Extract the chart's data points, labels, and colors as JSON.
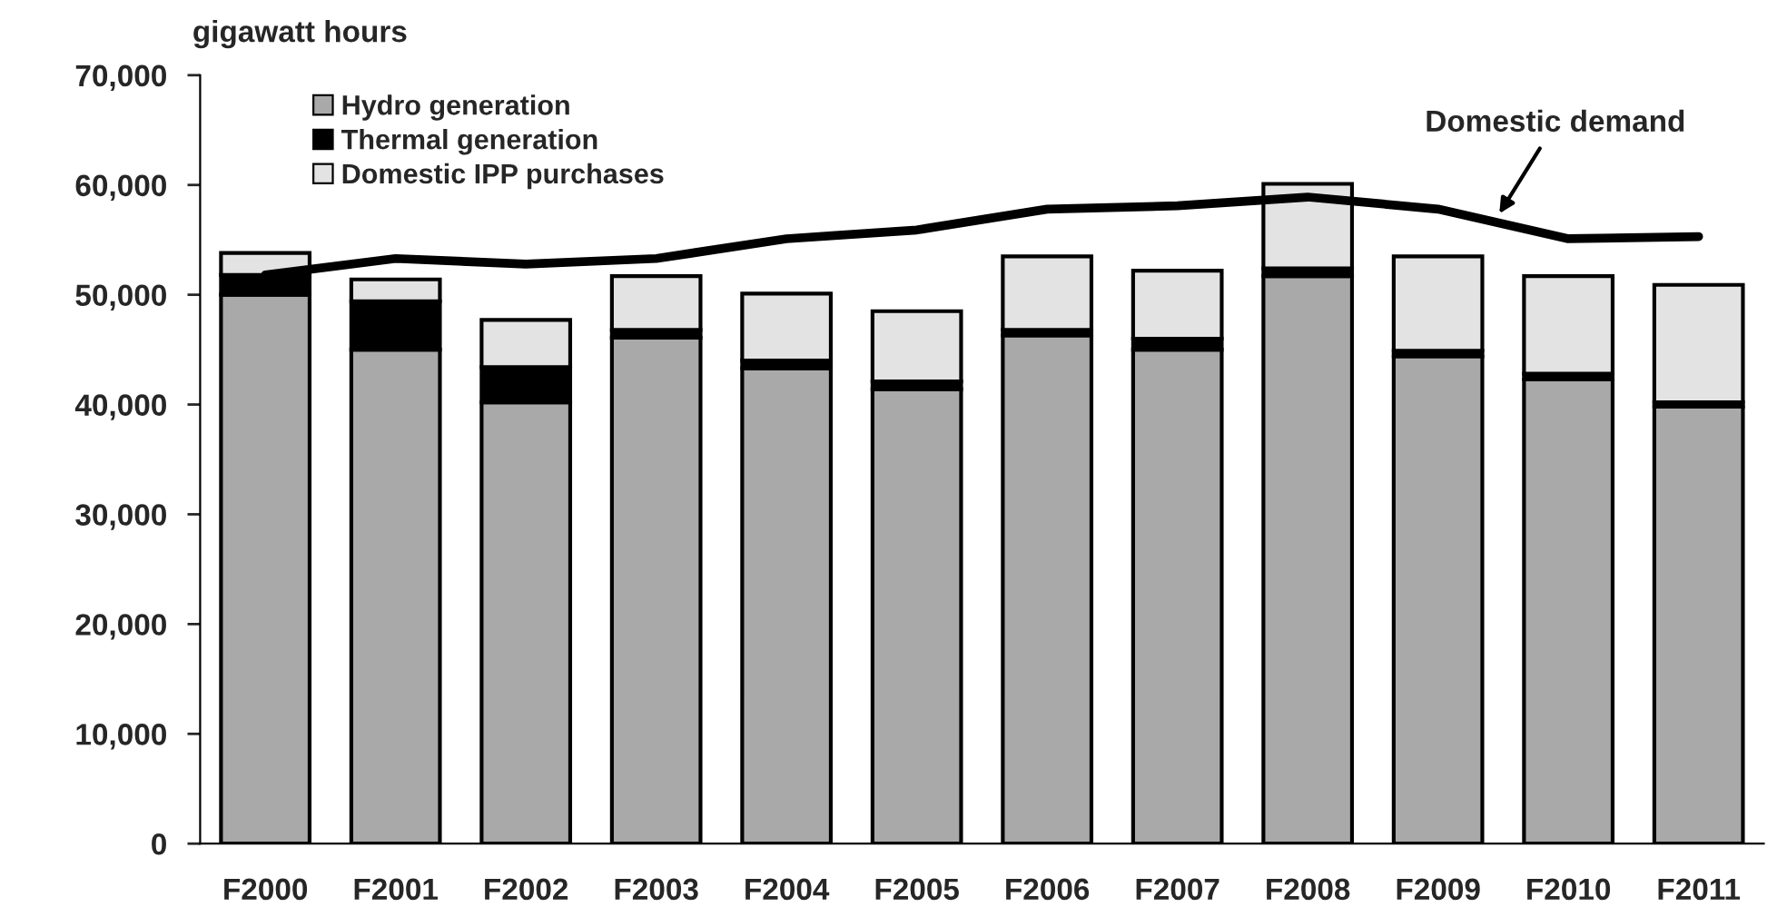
{
  "chart_data": {
    "type": "bar",
    "ylabel": "gigawatt hours",
    "stacked": true,
    "categories": [
      "F2000",
      "F2001",
      "F2002",
      "F2003",
      "F2004",
      "F2005",
      "F2006",
      "F2007",
      "F2008",
      "F2009",
      "F2010",
      "F2011"
    ],
    "series": [
      {
        "name": "Hydro generation",
        "color": "#a9a9a9",
        "values": [
          50000,
          45000,
          40200,
          46100,
          43300,
          41400,
          46300,
          45000,
          51700,
          44400,
          42300,
          39800
        ]
      },
      {
        "name": "Thermal generation",
        "color": "#000000",
        "values": [
          1800,
          4400,
          3200,
          700,
          700,
          700,
          500,
          1000,
          700,
          500,
          500,
          400
        ]
      },
      {
        "name": "Domestic IPP purchases",
        "color": "#e3e3e3",
        "values": [
          2000,
          2000,
          4300,
          4900,
          6100,
          6400,
          6700,
          6200,
          7700,
          8600,
          8900,
          10700
        ]
      },
      {
        "name": "Domestic demand",
        "type": "line",
        "color": "#000000",
        "values": [
          51800,
          53300,
          52800,
          53300,
          55100,
          55900,
          57800,
          58100,
          58900,
          57800,
          55100,
          55300
        ]
      }
    ],
    "ylim": [
      0,
      70000
    ],
    "yticks": [
      {
        "value": 0,
        "label": "0"
      },
      {
        "value": 10000,
        "label": "10,000"
      },
      {
        "value": 20000,
        "label": "20,000"
      },
      {
        "value": 30000,
        "label": "30,000"
      },
      {
        "value": 40000,
        "label": "40,000"
      },
      {
        "value": 50000,
        "label": "50,000"
      },
      {
        "value": 60000,
        "label": "60,000"
      },
      {
        "value": 70000,
        "label": "70,000"
      }
    ],
    "grid": false,
    "legend": "top left"
  }
}
